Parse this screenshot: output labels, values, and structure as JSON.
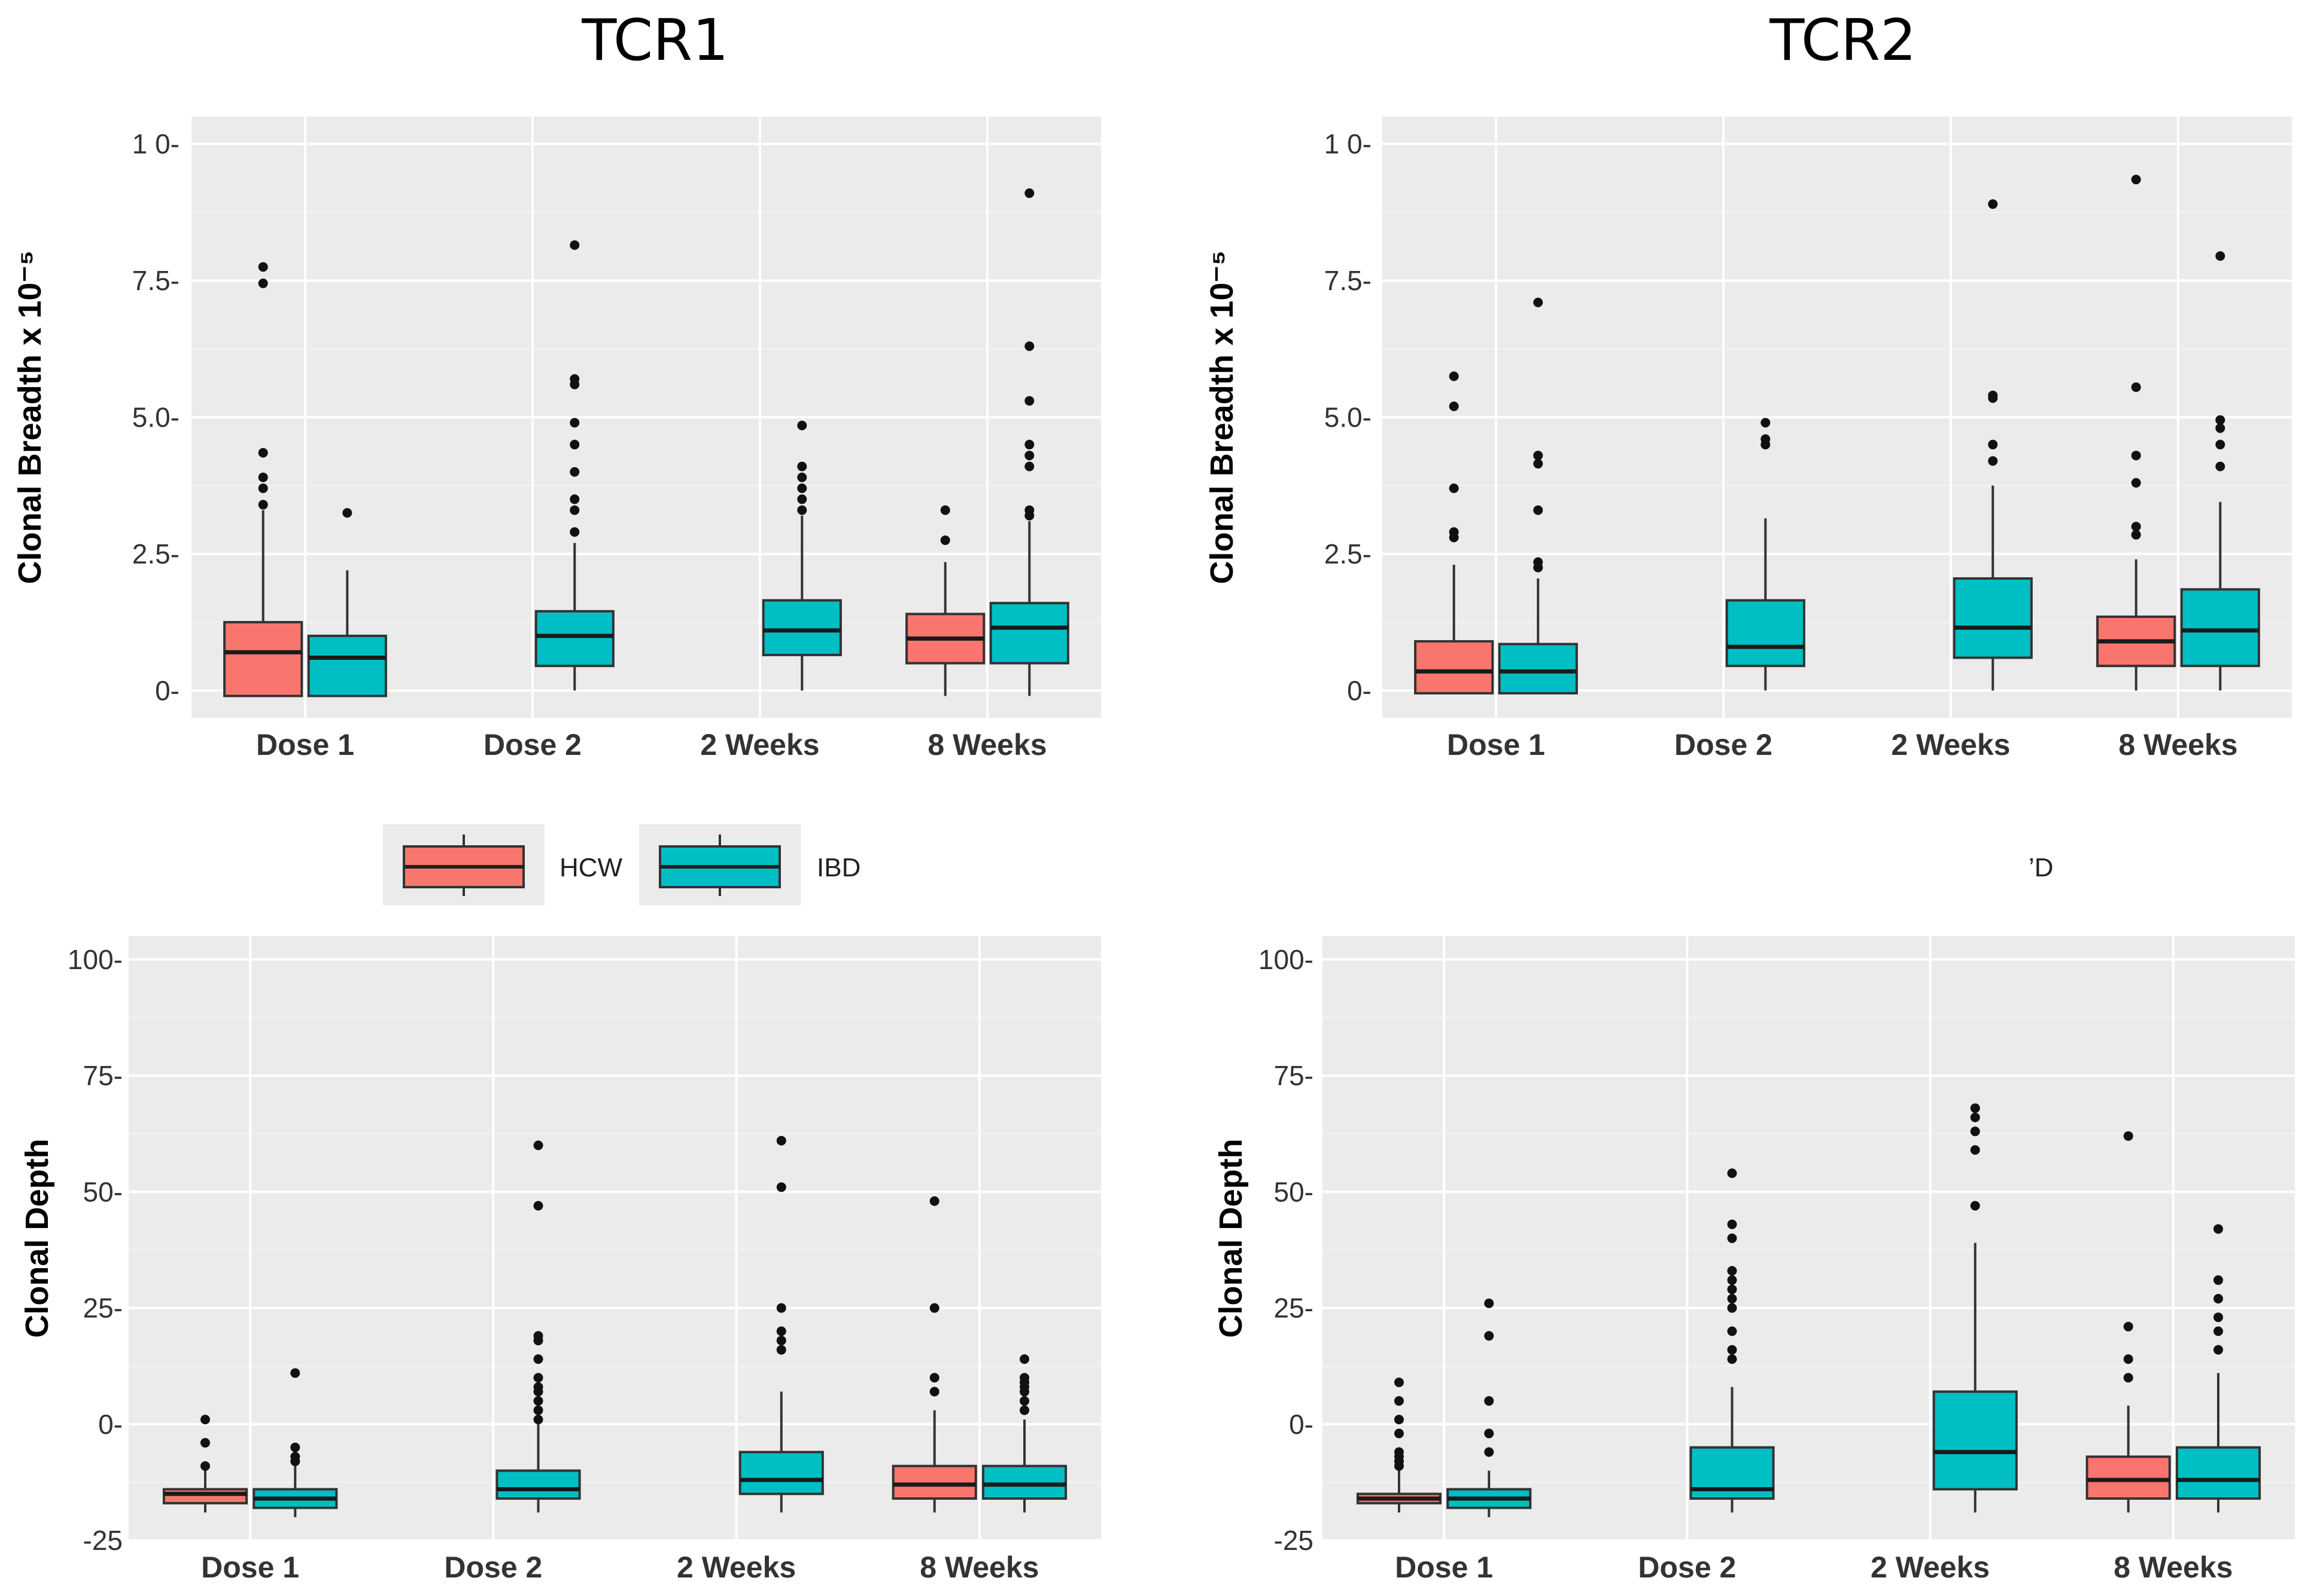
{
  "columns": [
    "TCR1",
    "TCR2"
  ],
  "colors": {
    "HCW": "#F8766D",
    "IBD": "#00BFC4",
    "panel": "#EBEBEB",
    "grid": "#FFFFFF"
  },
  "legend": {
    "items": [
      {
        "label": "HCW",
        "color": "#F8766D"
      },
      {
        "label": "IBD",
        "color": "#00BFC4"
      }
    ],
    "right_fragment": "’D"
  },
  "chart_data": [
    {
      "type": "boxplot",
      "title": "TCR1",
      "ylabel": "Clonal Breadth x 10⁻⁵",
      "categories": [
        "Dose 1",
        "Dose 2",
        "2 Weeks",
        "8 Weeks"
      ],
      "y_ticks": [
        0,
        2.5,
        5.0,
        7.5,
        10.0
      ],
      "y_tick_labels": [
        "0-",
        "2.5-",
        "5.0-",
        "7.5-",
        "1 0-"
      ],
      "ylim": [
        -0.5,
        10.5
      ],
      "boxes": [
        {
          "category": "Dose 1",
          "group": "HCW",
          "q1": -0.1,
          "median": 0.7,
          "q3": 1.25,
          "low": -0.1,
          "high": 3.3,
          "outliers": [
            3.4,
            3.7,
            3.9,
            4.35,
            7.45,
            7.75
          ]
        },
        {
          "category": "Dose 1",
          "group": "IBD",
          "q1": -0.1,
          "median": 0.6,
          "q3": 1.0,
          "low": -0.1,
          "high": 2.2,
          "outliers": [
            3.25
          ]
        },
        {
          "category": "Dose 2",
          "group": "IBD",
          "q1": 0.45,
          "median": 1.0,
          "q3": 1.45,
          "low": 0,
          "high": 2.7,
          "outliers": [
            2.9,
            3.3,
            3.5,
            4.0,
            4.5,
            4.9,
            5.6,
            5.7,
            8.15
          ]
        },
        {
          "category": "2 Weeks",
          "group": "IBD",
          "q1": 0.65,
          "median": 1.1,
          "q3": 1.65,
          "low": 0,
          "high": 3.2,
          "outliers": [
            3.3,
            3.5,
            3.7,
            3.9,
            4.1,
            4.85
          ]
        },
        {
          "category": "8 Weeks",
          "group": "HCW",
          "q1": 0.5,
          "median": 0.95,
          "q3": 1.4,
          "low": -0.1,
          "high": 2.35,
          "outliers": [
            2.75,
            3.3
          ]
        },
        {
          "category": "8 Weeks",
          "group": "IBD",
          "q1": 0.5,
          "median": 1.15,
          "q3": 1.6,
          "low": -0.1,
          "high": 3.1,
          "outliers": [
            3.2,
            3.3,
            4.1,
            4.3,
            4.5,
            5.3,
            6.3,
            9.1
          ]
        }
      ]
    },
    {
      "type": "boxplot",
      "title": "TCR2",
      "ylabel": "Clonal Breadth x 10⁻⁵",
      "categories": [
        "Dose 1",
        "Dose 2",
        "2 Weeks",
        "8 Weeks"
      ],
      "y_ticks": [
        0,
        2.5,
        5.0,
        7.5,
        10.0
      ],
      "y_tick_labels": [
        "0-",
        "2.5-",
        "5.0-",
        "7.5-",
        "1 0-"
      ],
      "ylim": [
        -0.5,
        10.5
      ],
      "boxes": [
        {
          "category": "Dose 1",
          "group": "HCW",
          "q1": -0.05,
          "median": 0.35,
          "q3": 0.9,
          "low": -0.05,
          "high": 2.3,
          "outliers": [
            2.8,
            2.9,
            3.7,
            5.2,
            5.75
          ]
        },
        {
          "category": "Dose 1",
          "group": "IBD",
          "q1": -0.05,
          "median": 0.35,
          "q3": 0.85,
          "low": -0.05,
          "high": 2.05,
          "outliers": [
            2.25,
            2.35,
            3.3,
            4.15,
            4.3,
            7.1
          ]
        },
        {
          "category": "Dose 2",
          "group": "IBD",
          "q1": 0.45,
          "median": 0.8,
          "q3": 1.65,
          "low": 0,
          "high": 3.15,
          "outliers": [
            4.5,
            4.6,
            4.9
          ]
        },
        {
          "category": "2 Weeks",
          "group": "IBD",
          "q1": 0.6,
          "median": 1.15,
          "q3": 2.05,
          "low": 0,
          "high": 3.75,
          "outliers": [
            4.2,
            4.5,
            5.35,
            5.4,
            8.9
          ]
        },
        {
          "category": "8 Weeks",
          "group": "HCW",
          "q1": 0.45,
          "median": 0.9,
          "q3": 1.35,
          "low": 0,
          "high": 2.4,
          "outliers": [
            2.85,
            3.0,
            3.8,
            4.3,
            5.55,
            9.35
          ]
        },
        {
          "category": "8 Weeks",
          "group": "IBD",
          "q1": 0.45,
          "median": 1.1,
          "q3": 1.85,
          "low": 0,
          "high": 3.45,
          "outliers": [
            4.1,
            4.5,
            4.8,
            4.95,
            7.95
          ]
        }
      ]
    },
    {
      "type": "boxplot",
      "title": "",
      "ylabel": "Clonal Depth",
      "categories": [
        "Dose 1",
        "Dose 2",
        "2 Weeks",
        "8 Weeks"
      ],
      "y_ticks": [
        -25,
        0,
        25,
        50,
        75,
        100
      ],
      "y_tick_labels": [
        "-25",
        "0-",
        "25-",
        "50-",
        "75-",
        "100-"
      ],
      "ylim": [
        -25,
        105
      ],
      "boxes": [
        {
          "category": "Dose 1",
          "group": "HCW",
          "q1": -17,
          "median": -15,
          "q3": -14,
          "low": -19,
          "high": -10,
          "outliers": [
            -9,
            -4,
            1
          ]
        },
        {
          "category": "Dose 1",
          "group": "IBD",
          "q1": -18,
          "median": -16,
          "q3": -14,
          "low": -20,
          "high": -9,
          "outliers": [
            -8,
            -7,
            -5,
            11
          ]
        },
        {
          "category": "Dose 2",
          "group": "IBD",
          "q1": -16,
          "median": -14,
          "q3": -10,
          "low": -19,
          "high": 0,
          "outliers": [
            1,
            3,
            5,
            7,
            8,
            10,
            14,
            18,
            19,
            47,
            60
          ]
        },
        {
          "category": "2 Weeks",
          "group": "IBD",
          "q1": -15,
          "median": -12,
          "q3": -6,
          "low": -19,
          "high": 7,
          "outliers": [
            16,
            18,
            20,
            25,
            51,
            61
          ]
        },
        {
          "category": "8 Weeks",
          "group": "HCW",
          "q1": -16,
          "median": -13,
          "q3": -9,
          "low": -19,
          "high": 3,
          "outliers": [
            7,
            10,
            25,
            48
          ]
        },
        {
          "category": "8 Weeks",
          "group": "IBD",
          "q1": -16,
          "median": -13,
          "q3": -9,
          "low": -19,
          "high": 1,
          "outliers": [
            3,
            5,
            7,
            8,
            9,
            10,
            14
          ]
        }
      ]
    },
    {
      "type": "boxplot",
      "title": "",
      "ylabel": "Clonal Depth",
      "categories": [
        "Dose 1",
        "Dose 2",
        "2 Weeks",
        "8 Weeks"
      ],
      "y_ticks": [
        -25,
        0,
        25,
        50,
        75,
        100
      ],
      "y_tick_labels": [
        "-25",
        "0-",
        "25-",
        "50-",
        "75-",
        "100-"
      ],
      "ylim": [
        -25,
        105
      ],
      "boxes": [
        {
          "category": "Dose 1",
          "group": "HCW",
          "q1": -17,
          "median": -16,
          "q3": -15,
          "low": -19,
          "high": -10,
          "outliers": [
            -9,
            -8,
            -7,
            -6,
            -2,
            1,
            5,
            9
          ]
        },
        {
          "category": "Dose 1",
          "group": "IBD",
          "q1": -18,
          "median": -16,
          "q3": -14,
          "low": -20,
          "high": -10,
          "outliers": [
            -6,
            -2,
            5,
            19,
            26
          ]
        },
        {
          "category": "Dose 2",
          "group": "IBD",
          "q1": -16,
          "median": -14,
          "q3": -5,
          "low": -19,
          "high": 8,
          "outliers": [
            14,
            16,
            20,
            25,
            27,
            29,
            31,
            33,
            40,
            43,
            54
          ]
        },
        {
          "category": "2 Weeks",
          "group": "IBD",
          "q1": -14,
          "median": -6,
          "q3": 7,
          "low": -19,
          "high": 39,
          "outliers": [
            47,
            59,
            63,
            66,
            68
          ]
        },
        {
          "category": "8 Weeks",
          "group": "HCW",
          "q1": -16,
          "median": -12,
          "q3": -7,
          "low": -19,
          "high": 4,
          "outliers": [
            10,
            14,
            21,
            62
          ]
        },
        {
          "category": "8 Weeks",
          "group": "IBD",
          "q1": -16,
          "median": -12,
          "q3": -5,
          "low": -19,
          "high": 11,
          "outliers": [
            16,
            20,
            23,
            27,
            31,
            42
          ]
        }
      ]
    }
  ]
}
